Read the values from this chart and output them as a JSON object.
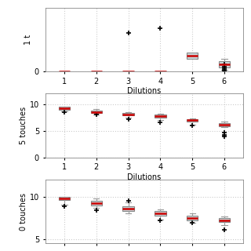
{
  "xlabel": "Dilutions",
  "xticks": [
    1,
    2,
    3,
    4,
    5,
    6
  ],
  "box_color": "#c8d8da",
  "median_color": "#cc0000",
  "whisker_color": "#999999",
  "cap_color": "#999999",
  "flier_color": "#cc0000",
  "grid_color": "#cccccc",
  "plots": [
    {
      "ylabel": "1 t",
      "ylim": [
        0,
        14
      ],
      "yticks": [
        0
      ],
      "boxes": [
        {
          "q1": 0.0,
          "median": 0.0,
          "q3": 0.0,
          "whislo": 0.0,
          "whishi": 0.0,
          "fliers": []
        },
        {
          "q1": 0.0,
          "median": 0.0,
          "q3": 0.0,
          "whislo": 0.0,
          "whishi": 0.0,
          "fliers": []
        },
        {
          "q1": 0.0,
          "median": 0.0,
          "q3": 0.0,
          "whislo": 0.0,
          "whishi": 0.0,
          "fliers": [
            8.5
          ]
        },
        {
          "q1": 0.0,
          "median": 0.0,
          "q3": 0.0,
          "whislo": 0.0,
          "whishi": 0.0,
          "fliers": [
            9.5
          ]
        },
        {
          "q1": 2.8,
          "median": 3.5,
          "q3": 4.2,
          "whislo": 2.8,
          "whishi": 4.2,
          "fliers": []
        },
        {
          "q1": 0.8,
          "median": 1.5,
          "q3": 2.2,
          "whislo": 0.3,
          "whishi": 2.8,
          "fliers": [
            0.1,
            0.3,
            0.6,
            1.0,
            1.5
          ]
        }
      ]
    },
    {
      "ylabel": "5 touches",
      "ylim": [
        0,
        12
      ],
      "yticks": [
        0,
        5,
        10
      ],
      "boxes": [
        {
          "q1": 9.0,
          "median": 9.2,
          "q3": 9.5,
          "whislo": 8.7,
          "whishi": 9.6,
          "fliers": [
            8.5
          ]
        },
        {
          "q1": 8.3,
          "median": 8.5,
          "q3": 8.8,
          "whislo": 8.0,
          "whishi": 9.1,
          "fliers": [
            8.0
          ]
        },
        {
          "q1": 7.9,
          "median": 8.1,
          "q3": 8.3,
          "whislo": 7.5,
          "whishi": 8.5,
          "fliers": [
            7.2
          ]
        },
        {
          "q1": 7.5,
          "median": 7.7,
          "q3": 8.0,
          "whislo": 7.0,
          "whishi": 8.2,
          "fliers": [
            6.6
          ]
        },
        {
          "q1": 6.7,
          "median": 7.0,
          "q3": 7.2,
          "whislo": 6.2,
          "whishi": 7.4,
          "fliers": [
            6.0
          ]
        },
        {
          "q1": 5.9,
          "median": 6.1,
          "q3": 6.5,
          "whislo": 5.7,
          "whishi": 6.8,
          "fliers": [
            4.6,
            4.3,
            4.0
          ]
        }
      ]
    },
    {
      "ylabel": "0 touches",
      "ylim": [
        4.5,
        12
      ],
      "yticks": [
        5,
        10
      ],
      "boxes": [
        {
          "q1": 9.6,
          "median": 9.8,
          "q3": 10.0,
          "whislo": 9.1,
          "whishi": 10.0,
          "fliers": [
            8.9
          ]
        },
        {
          "q1": 9.0,
          "median": 9.2,
          "q3": 9.5,
          "whislo": 8.7,
          "whishi": 9.8,
          "fliers": [
            8.4
          ]
        },
        {
          "q1": 8.3,
          "median": 8.6,
          "q3": 8.9,
          "whislo": 8.0,
          "whishi": 9.3,
          "fliers": [
            9.5
          ]
        },
        {
          "q1": 7.8,
          "median": 8.0,
          "q3": 8.3,
          "whislo": 7.3,
          "whishi": 8.5,
          "fliers": [
            7.2
          ]
        },
        {
          "q1": 7.2,
          "median": 7.5,
          "q3": 7.8,
          "whislo": 6.9,
          "whishi": 8.0,
          "fliers": [
            6.9
          ]
        },
        {
          "q1": 7.0,
          "median": 7.2,
          "q3": 7.5,
          "whislo": 6.7,
          "whishi": 7.7,
          "fliers": [
            6.1
          ]
        }
      ]
    }
  ]
}
